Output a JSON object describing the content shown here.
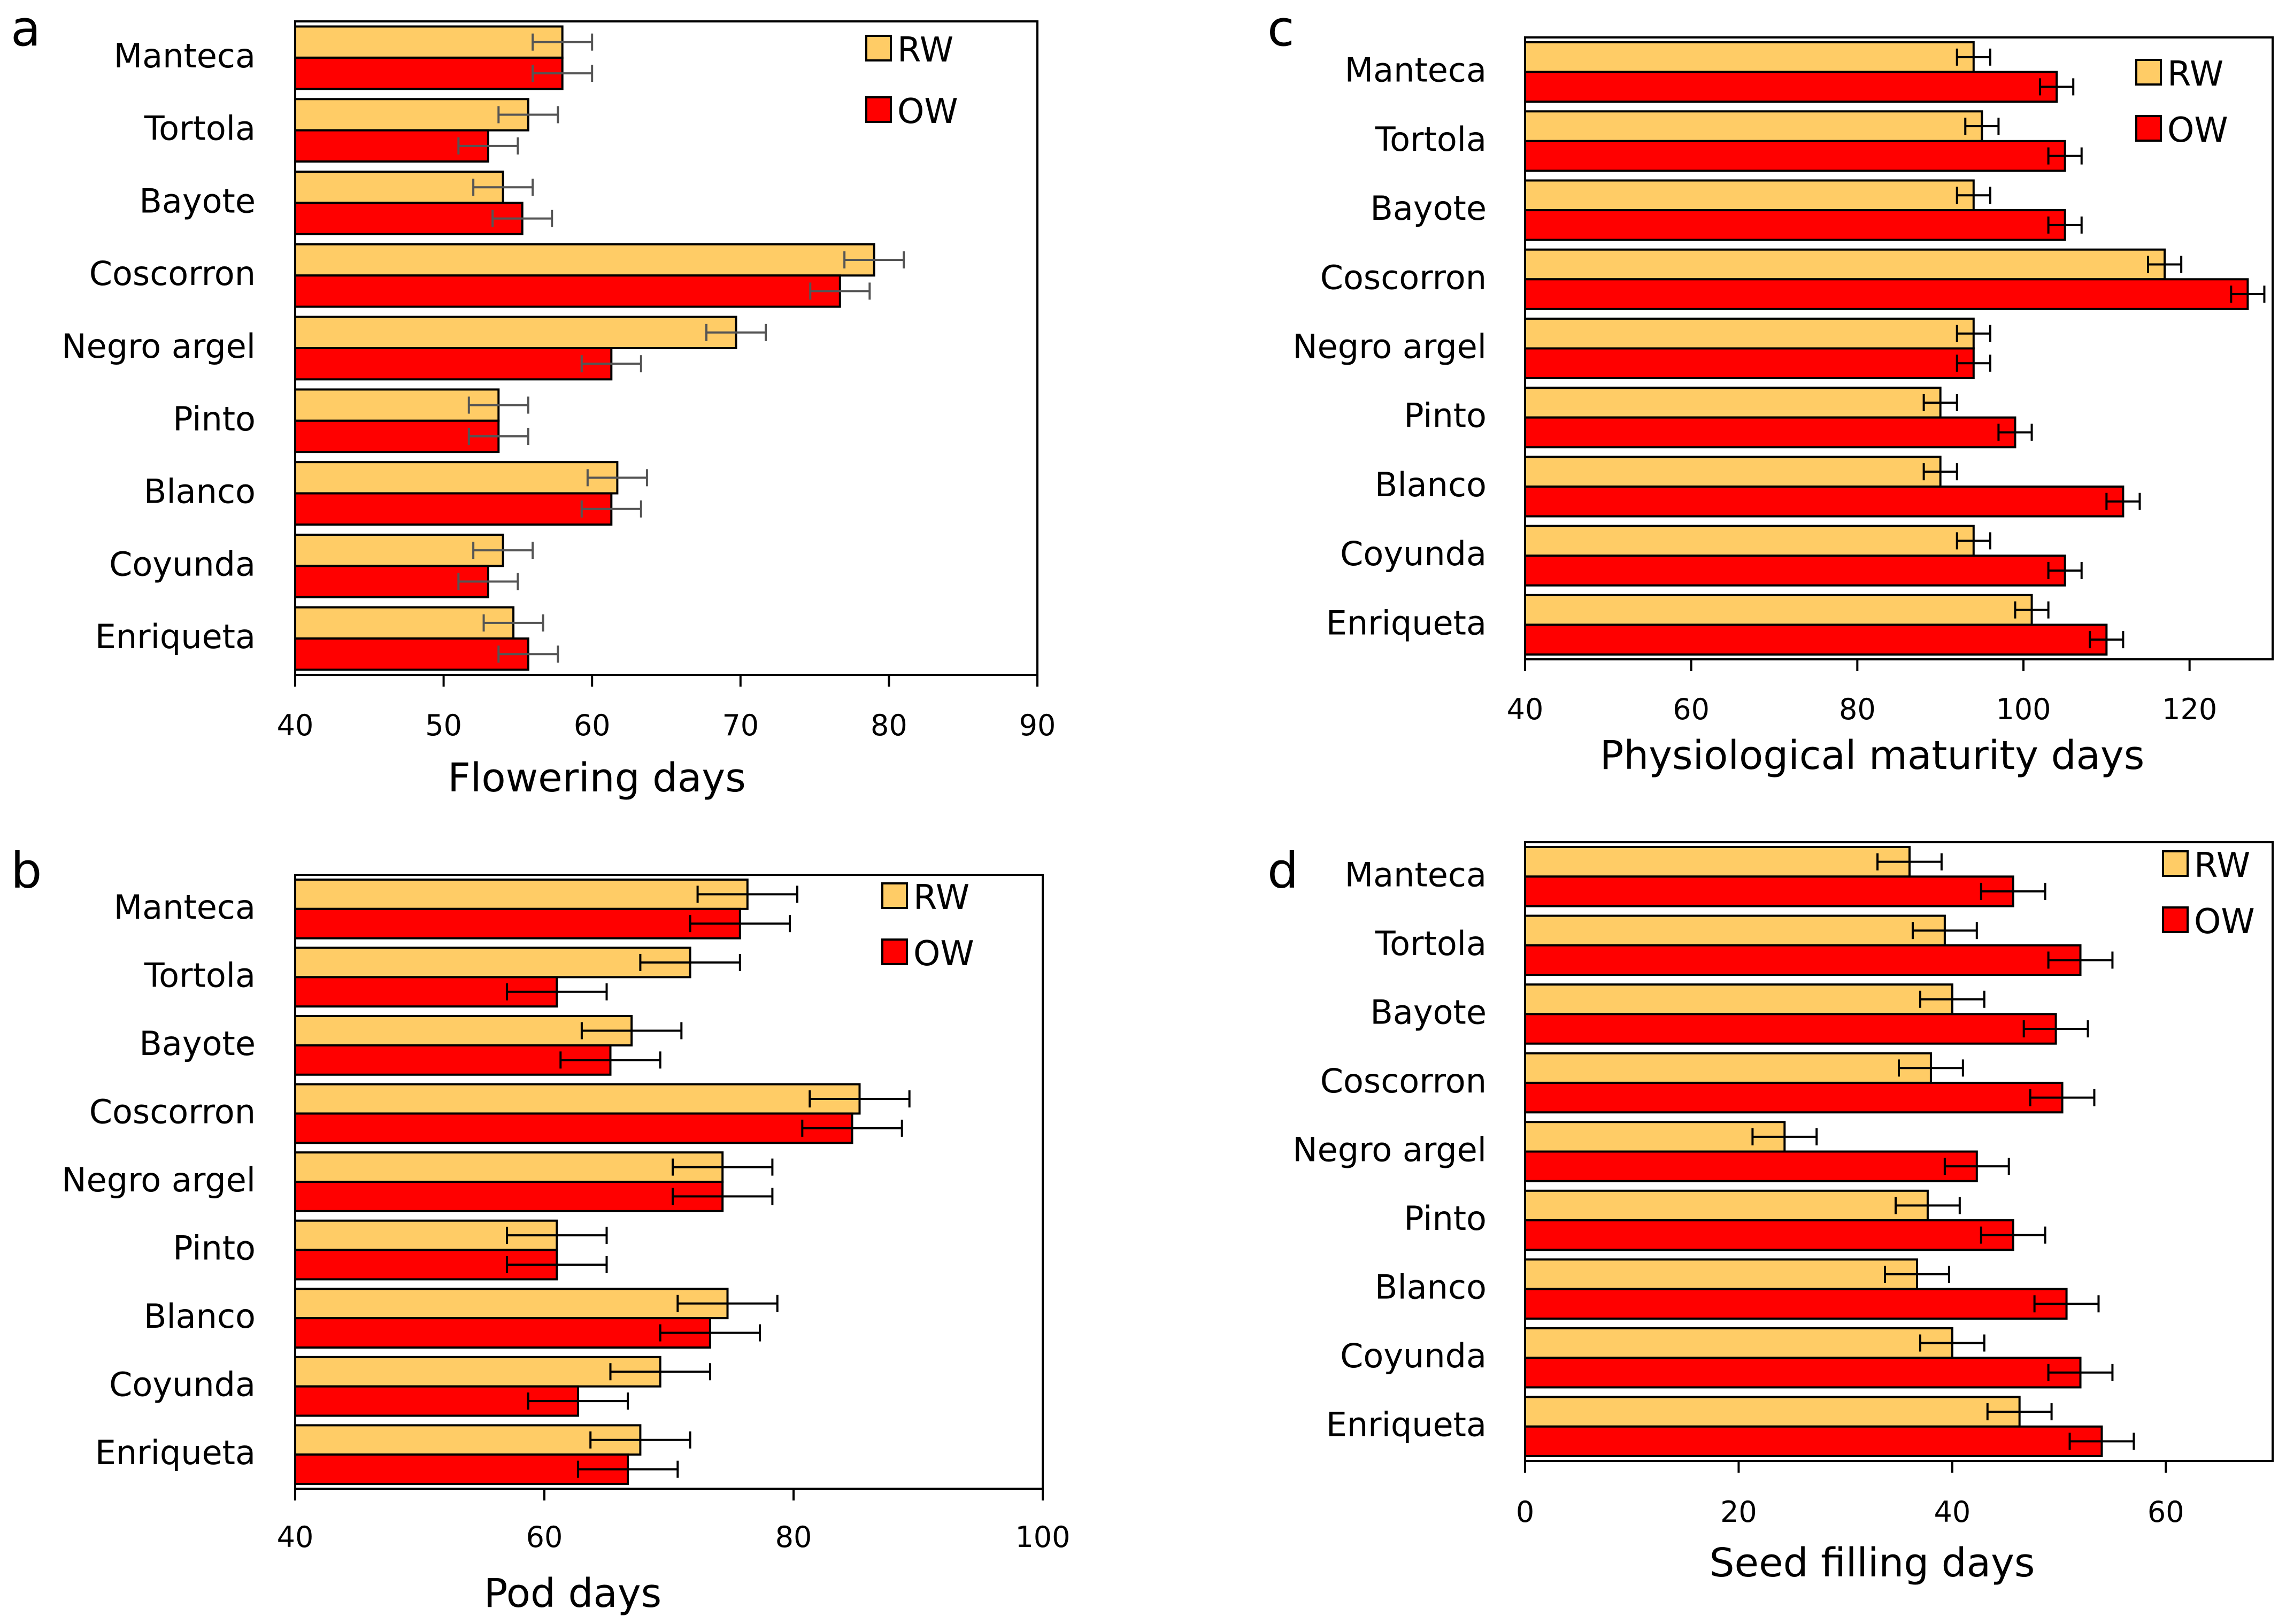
{
  "colors": {
    "rw": "#FFCC66",
    "ow": "#FF0000",
    "bar_stroke": "#000000",
    "error_gray": "#555555",
    "error_black": "#000000"
  },
  "chart_data": [
    {
      "id": "a",
      "panel_label": "a",
      "type": "bar",
      "orientation": "horizontal",
      "xlabel": "Flowering days",
      "xlim": [
        40,
        90
      ],
      "xticks": [
        40,
        50,
        60,
        70,
        80,
        90
      ],
      "categories": [
        "Manteca",
        "Tortola",
        "Bayote",
        "Coscorron",
        "Negro argel",
        "Pinto",
        "Blanco",
        "Coyunda",
        "Enriqueta"
      ],
      "legend": {
        "position": "top-right",
        "entries": [
          "RW",
          "OW"
        ]
      },
      "series": [
        {
          "name": "RW",
          "values": [
            58,
            55.7,
            54,
            79,
            69.7,
            53.7,
            61.7,
            54,
            54.7
          ],
          "errors": [
            2,
            2,
            2,
            2,
            2,
            2,
            2,
            2,
            2
          ]
        },
        {
          "name": "OW",
          "values": [
            58,
            53,
            55.3,
            76.7,
            61.3,
            53.7,
            61.3,
            53,
            55.7
          ],
          "errors": [
            2,
            2,
            2,
            2,
            2,
            2,
            2,
            2,
            2
          ]
        }
      ]
    },
    {
      "id": "b",
      "panel_label": "b",
      "type": "bar",
      "orientation": "horizontal",
      "xlabel": "Pod days",
      "xlim": [
        40,
        100
      ],
      "xticks": [
        40,
        60,
        80,
        100
      ],
      "categories": [
        "Manteca",
        "Tortola",
        "Bayote",
        "Coscorron",
        "Negro argel",
        "Pinto",
        "Blanco",
        "Coyunda",
        "Enriqueta"
      ],
      "legend": {
        "position": "top-right",
        "entries": [
          "RW",
          "OW"
        ]
      },
      "series": [
        {
          "name": "RW",
          "values": [
            76.3,
            71.7,
            67,
            85.3,
            74.3,
            61,
            74.7,
            69.3,
            67.7
          ],
          "errors": [
            4,
            4,
            4,
            4,
            4,
            4,
            4,
            4,
            4
          ]
        },
        {
          "name": "OW",
          "values": [
            75.7,
            61,
            65.3,
            84.7,
            74.3,
            61,
            73.3,
            62.7,
            66.7
          ],
          "errors": [
            4,
            4,
            4,
            4,
            4,
            4,
            4,
            4,
            4
          ]
        }
      ]
    },
    {
      "id": "c",
      "panel_label": "c",
      "type": "bar",
      "orientation": "horizontal",
      "xlabel": "Physiological maturity days",
      "xlim": [
        40,
        130
      ],
      "xticks": [
        40,
        60,
        80,
        100,
        120
      ],
      "categories": [
        "Manteca",
        "Tortola",
        "Bayote",
        "Coscorron",
        "Negro argel",
        "Pinto",
        "Blanco",
        "Coyunda",
        "Enriqueta"
      ],
      "legend": {
        "position": "top-right",
        "entries": [
          "RW",
          "OW"
        ]
      },
      "series": [
        {
          "name": "RW",
          "values": [
            94,
            95,
            94,
            117,
            94,
            90,
            90,
            94,
            101
          ],
          "errors": [
            2,
            2,
            2,
            2,
            2,
            2,
            2,
            2,
            2
          ]
        },
        {
          "name": "OW",
          "values": [
            104,
            105,
            105,
            127,
            94,
            99,
            112,
            105,
            110
          ],
          "errors": [
            2,
            2,
            2,
            2,
            2,
            2,
            2,
            2,
            2
          ]
        }
      ]
    },
    {
      "id": "d",
      "panel_label": "d",
      "type": "bar",
      "orientation": "horizontal",
      "xlabel": "Seed filling days",
      "xlim": [
        0,
        70
      ],
      "xticks": [
        0,
        20,
        40,
        60
      ],
      "categories": [
        "Manteca",
        "Tortola",
        "Bayote",
        "Coscorron",
        "Negro argel",
        "Pinto",
        "Blanco",
        "Coyunda",
        "Enriqueta"
      ],
      "legend": {
        "position": "top-right",
        "entries": [
          "RW",
          "OW"
        ]
      },
      "series": [
        {
          "name": "RW",
          "values": [
            36,
            39.3,
            40,
            38,
            24.3,
            37.7,
            36.7,
            40,
            46.3
          ],
          "errors": [
            3,
            3,
            3,
            3,
            3,
            3,
            3,
            3,
            3
          ]
        },
        {
          "name": "OW",
          "values": [
            45.7,
            52,
            49.7,
            50.3,
            42.3,
            45.7,
            50.7,
            52,
            54
          ],
          "errors": [
            3,
            3,
            3,
            3,
            3,
            3,
            3,
            3,
            3
          ]
        }
      ]
    }
  ]
}
